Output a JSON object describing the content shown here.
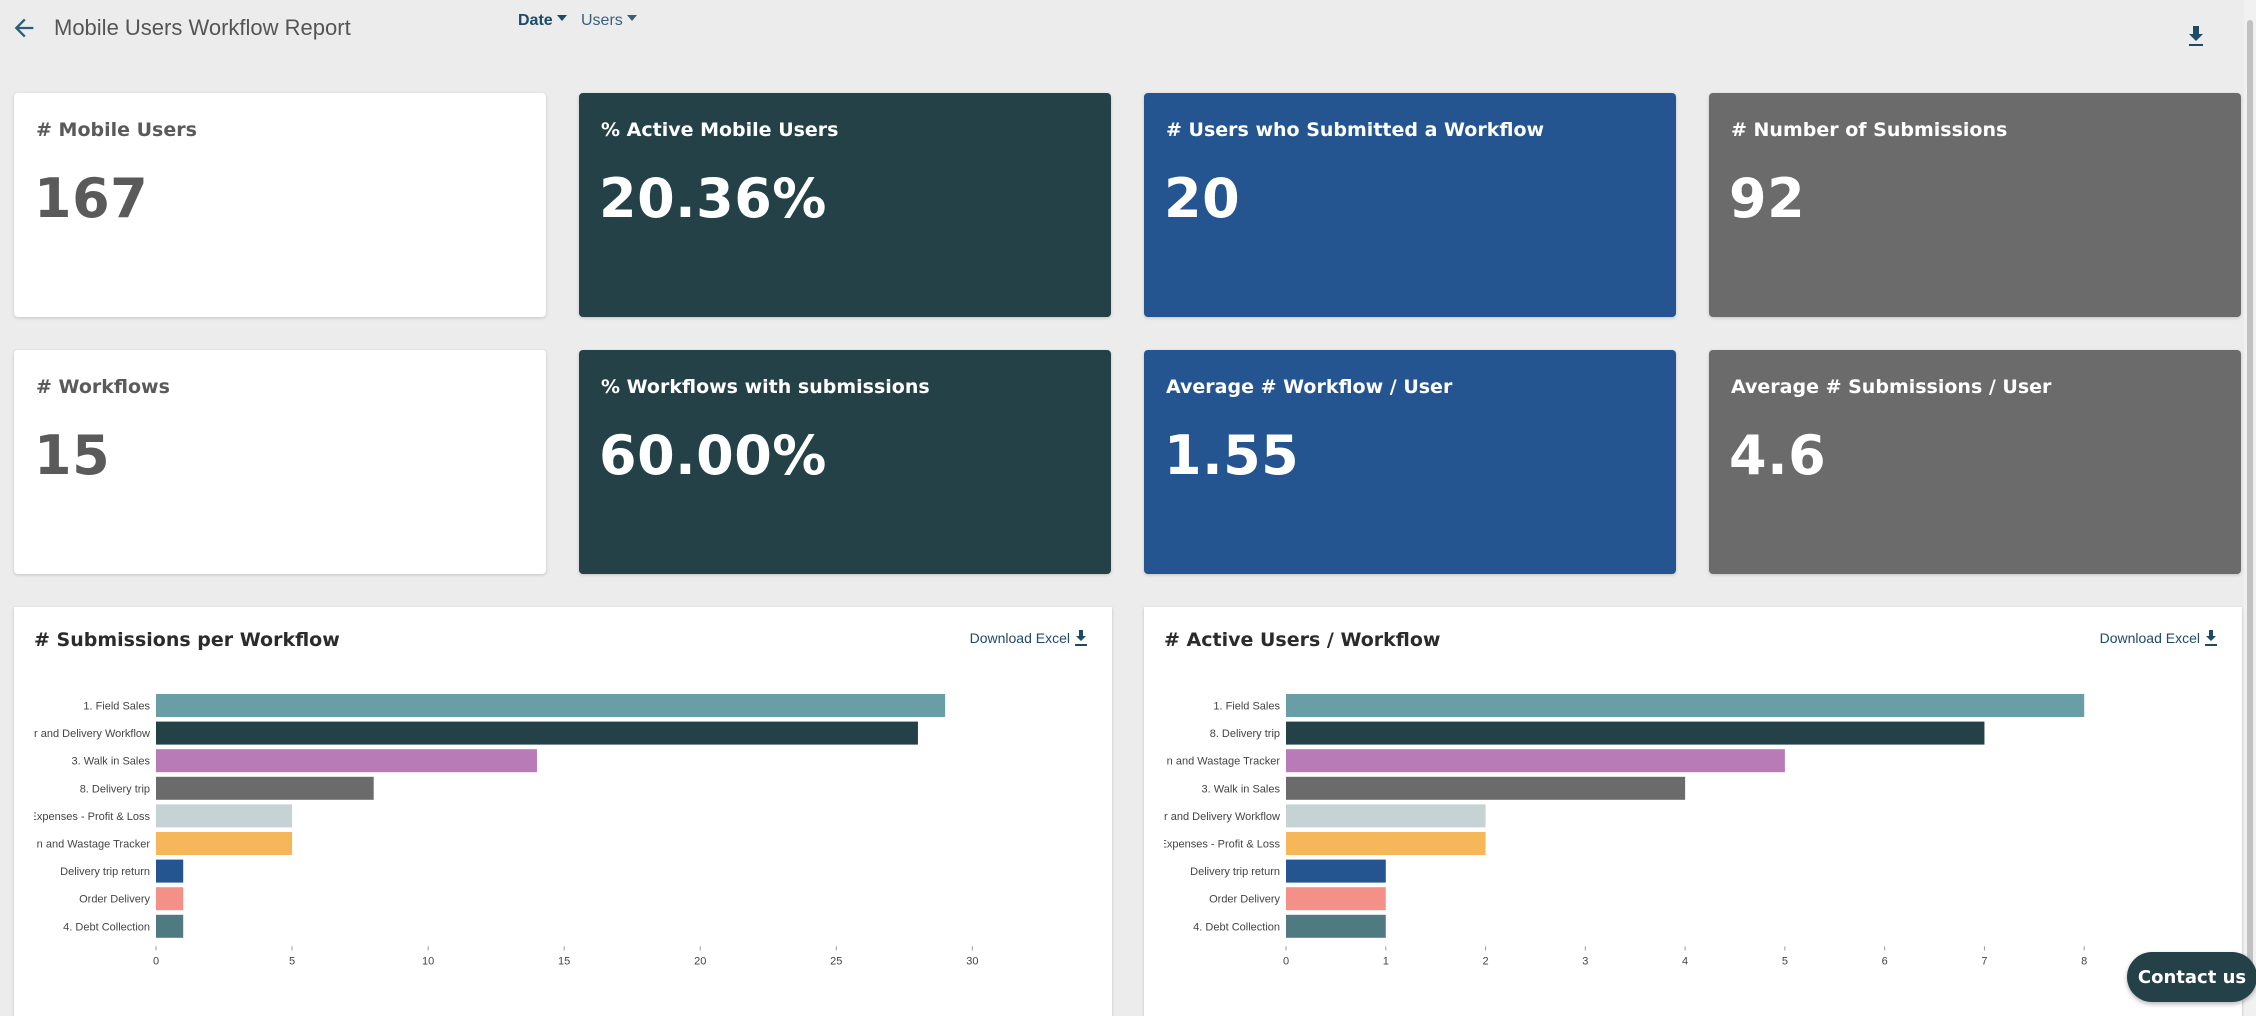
{
  "header": {
    "title": "Mobile Users Workflow Report",
    "filter_date": "Date",
    "filter_users": "Users"
  },
  "kpis": [
    {
      "label": "# Mobile Users",
      "value": "167"
    },
    {
      "label": "% Active Mobile Users",
      "value": "20.36%"
    },
    {
      "label": "# Users who Submitted a Workflow",
      "value": "20"
    },
    {
      "label": "# Number of Submissions",
      "value": "92"
    },
    {
      "label": "# Workflows",
      "value": "15"
    },
    {
      "label": "% Workflows with submissions",
      "value": "60.00%"
    },
    {
      "label": "Average # Workflow / User",
      "value": "1.55"
    },
    {
      "label": "Average # Submissions / User",
      "value": "4.6"
    }
  ],
  "panels": {
    "left": {
      "title": "# Submissions per Workflow",
      "download_label": "Download Excel"
    },
    "right": {
      "title": "# Active Users / Workflow",
      "download_label": "Download Excel"
    }
  },
  "contact_label": "Contact us",
  "chart_data": [
    {
      "type": "bar",
      "orientation": "horizontal",
      "title": "# Submissions per Workflow",
      "categories": [
        "1. Field Sales",
        "r and Delivery Workflow",
        "3. Walk in Sales",
        "8. Delivery trip",
        "Expenses - Profit & Loss",
        "n and Wastage Tracker",
        "Delivery trip return",
        "Order Delivery",
        "4. Debt Collection"
      ],
      "values": [
        29,
        28,
        14,
        8,
        5,
        5,
        1,
        1,
        1
      ],
      "colors": [
        "#6a9ea7",
        "#244148",
        "#b87bb7",
        "#6b6b6b",
        "#c5d3d5",
        "#f5b75a",
        "#245590",
        "#f49088",
        "#4f7a82"
      ],
      "xticks": [
        0,
        5,
        10,
        15,
        20,
        25,
        30
      ],
      "xlim": [
        0,
        33
      ]
    },
    {
      "type": "bar",
      "orientation": "horizontal",
      "title": "# Active Users / Workflow",
      "categories": [
        "1. Field Sales",
        "8. Delivery trip",
        "n and Wastage Tracker",
        "3. Walk in Sales",
        "r and Delivery Workflow",
        "Expenses - Profit & Loss",
        "Delivery trip return",
        "Order Delivery",
        "4. Debt Collection"
      ],
      "values": [
        8,
        7,
        5,
        4,
        2,
        2,
        1,
        1,
        1
      ],
      "colors": [
        "#6a9ea7",
        "#244148",
        "#b87bb7",
        "#6b6b6b",
        "#c5d3d5",
        "#f5b75a",
        "#245590",
        "#f49088",
        "#4f7a82"
      ],
      "xticks": [
        0,
        1,
        2,
        3,
        4,
        5,
        6,
        7,
        8
      ],
      "xlim": [
        0,
        9
      ]
    }
  ]
}
